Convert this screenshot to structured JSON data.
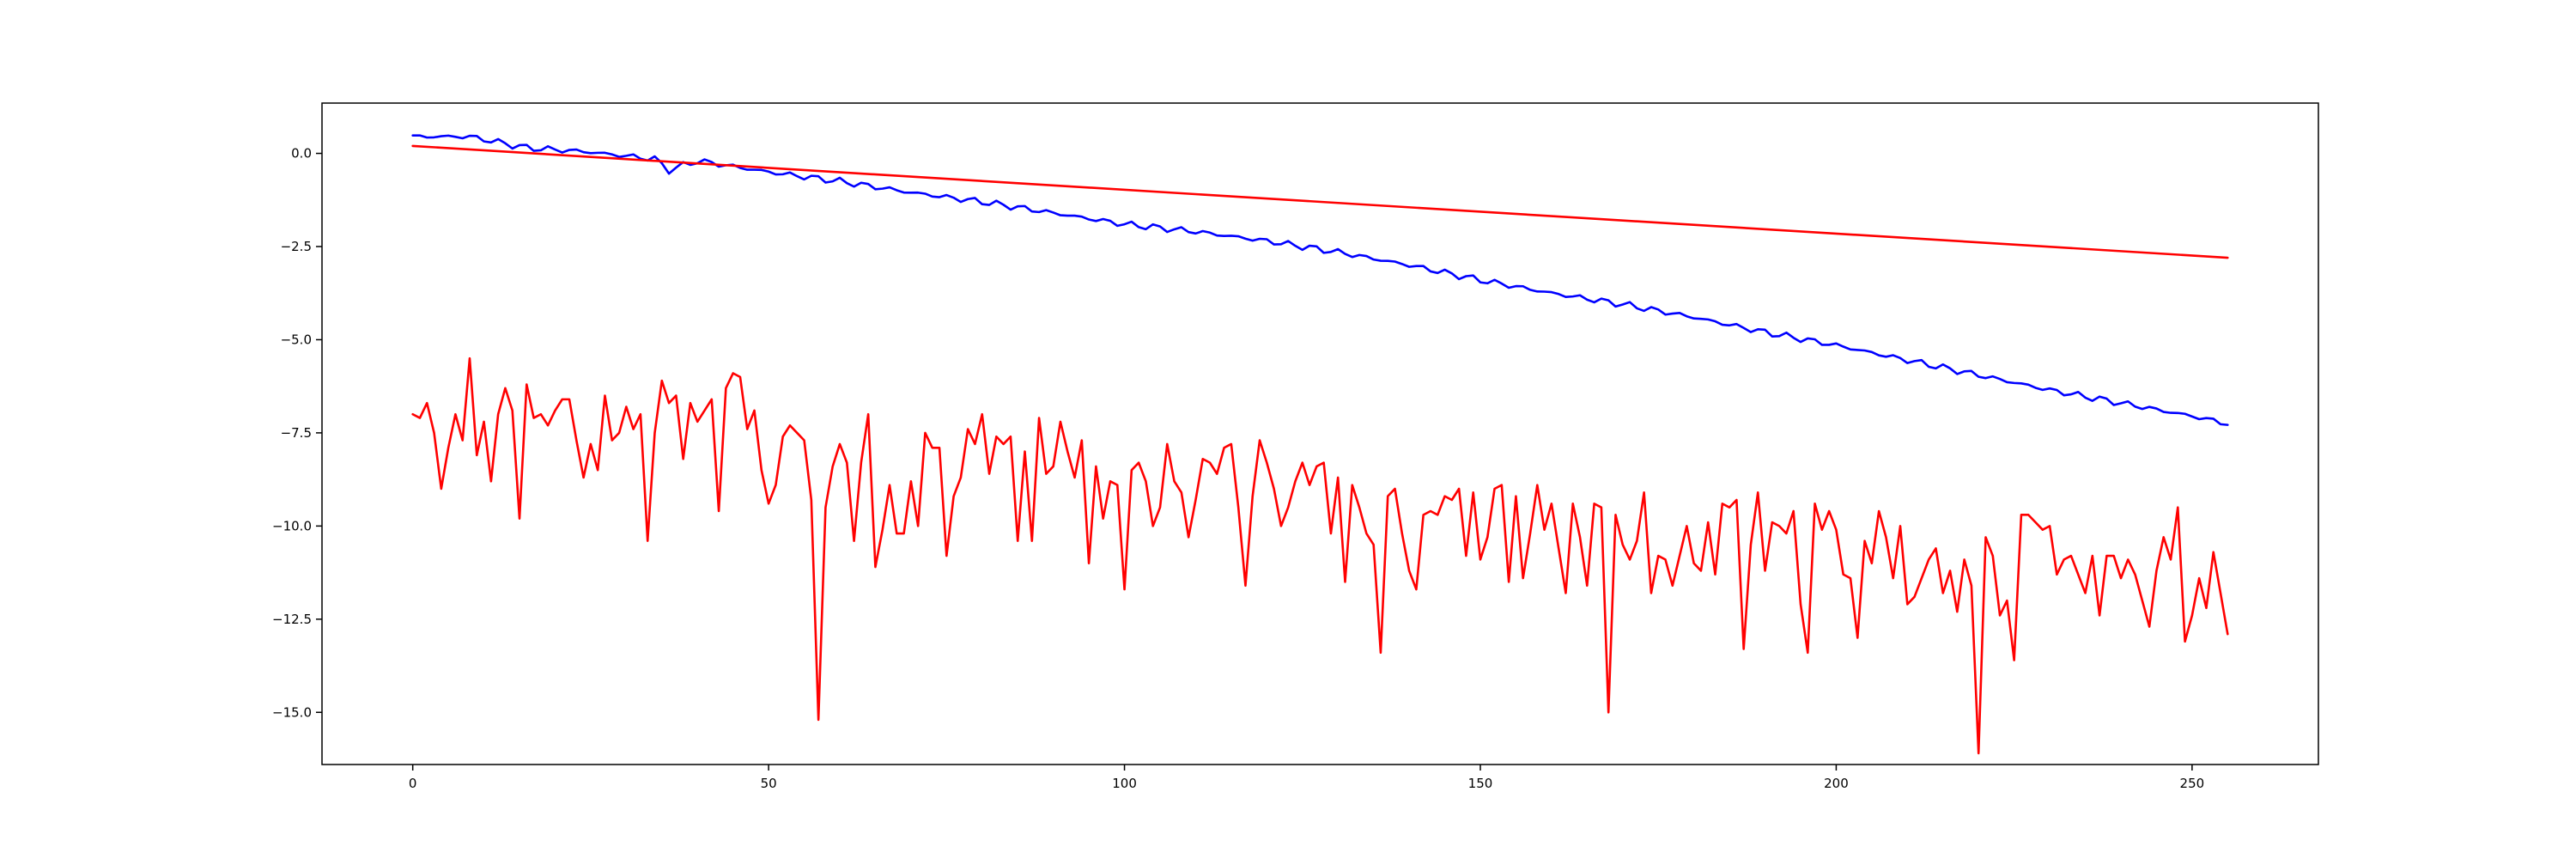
{
  "chart_data": {
    "type": "line",
    "title": "",
    "xlabel": "",
    "ylabel": "",
    "xlim": [
      -12.75,
      267.75
    ],
    "ylim": [
      -16.4,
      1.35
    ],
    "grid": false,
    "legend": "none",
    "x_ticks": [
      0,
      50,
      100,
      150,
      200,
      250
    ],
    "x_tick_labels": [
      "0",
      "50",
      "100",
      "150",
      "200",
      "250"
    ],
    "y_ticks": [
      0.0,
      -2.5,
      -5.0,
      -7.5,
      -10.0,
      -12.5,
      -15.0
    ],
    "y_tick_labels": [
      "0.0",
      "−2.5",
      "−5.0",
      "−7.5",
      "−10.0",
      "−12.5",
      "−15.0"
    ],
    "series": [
      {
        "color": "#0000ff",
        "x_start": 0,
        "anchors": [
          [
            0,
            0.45
          ],
          [
            8,
            0.45
          ],
          [
            16,
            0.15
          ],
          [
            24,
            0.05
          ],
          [
            34,
            -0.15
          ],
          [
            36,
            -0.45
          ],
          [
            40,
            -0.2
          ],
          [
            50,
            -0.5
          ],
          [
            60,
            -0.75
          ],
          [
            70,
            -1.05
          ],
          [
            80,
            -1.3
          ],
          [
            90,
            -1.6
          ],
          [
            100,
            -1.9
          ],
          [
            110,
            -2.1
          ],
          [
            120,
            -2.35
          ],
          [
            130,
            -2.65
          ],
          [
            140,
            -3.0
          ],
          [
            150,
            -3.4
          ],
          [
            160,
            -3.75
          ],
          [
            170,
            -4.05
          ],
          [
            180,
            -4.4
          ],
          [
            190,
            -4.8
          ],
          [
            200,
            -5.15
          ],
          [
            210,
            -5.55
          ],
          [
            220,
            -5.95
          ],
          [
            230,
            -6.35
          ],
          [
            240,
            -6.7
          ],
          [
            250,
            -7.05
          ],
          [
            255,
            -7.25
          ]
        ],
        "noise_amplitude": 0.06
      },
      {
        "color": "#ff0000",
        "x": [
          0,
          255
        ],
        "y": [
          0.2,
          -2.8
        ]
      },
      {
        "color": "#ff0000",
        "x_start": 0,
        "y": [
          -7.0,
          -7.1,
          -6.7,
          -7.5,
          -9.0,
          -7.9,
          -7.0,
          -7.7,
          -5.5,
          -8.1,
          -7.2,
          -8.8,
          -7.0,
          -6.3,
          -6.9,
          -9.8,
          -6.2,
          -7.1,
          -7.0,
          -7.3,
          -6.9,
          -6.6,
          -6.6,
          -7.7,
          -8.7,
          -7.8,
          -8.5,
          -6.5,
          -7.7,
          -7.5,
          -6.8,
          -7.4,
          -7.0,
          -10.4,
          -7.5,
          -6.1,
          -6.7,
          -6.5,
          -8.2,
          -6.7,
          -7.2,
          -6.9,
          -6.6,
          -9.6,
          -6.3,
          -5.9,
          -6.0,
          -7.4,
          -6.9,
          -8.5,
          -9.4,
          -8.9,
          -7.6,
          -7.3,
          -7.5,
          -7.7,
          -9.3,
          -15.2,
          -9.5,
          -8.4,
          -7.8,
          -8.3,
          -10.4,
          -8.3,
          -7.0,
          -11.1,
          -10.1,
          -8.9,
          -10.2,
          -10.2,
          -8.8,
          -10.0,
          -7.5,
          -7.9,
          -7.9,
          -10.8,
          -9.2,
          -8.7,
          -7.4,
          -7.8,
          -7.0,
          -8.6,
          -7.6,
          -7.8,
          -7.6,
          -10.4,
          -8.0,
          -10.4,
          -7.1,
          -8.6,
          -8.4,
          -7.2,
          -8.0,
          -8.7,
          -7.7,
          -11.0,
          -8.4,
          -9.8,
          -8.8,
          -8.9,
          -11.7,
          -8.5,
          -8.3,
          -8.8,
          -10.0,
          -9.5,
          -7.8,
          -8.8,
          -9.1,
          -10.3,
          -9.3,
          -8.2,
          -8.3,
          -8.6,
          -7.9,
          -7.8,
          -9.5,
          -11.6,
          -9.2,
          -7.7,
          -8.3,
          -9.0,
          -10.0,
          -9.5,
          -8.8,
          -8.3,
          -8.9,
          -8.4,
          -8.3,
          -10.2,
          -8.7,
          -11.5,
          -8.9,
          -9.5,
          -10.2,
          -10.5,
          -13.4,
          -9.2,
          -9.0,
          -10.2,
          -11.2,
          -11.7,
          -9.7,
          -9.6,
          -9.7,
          -9.2,
          -9.3,
          -9.0,
          -10.8,
          -9.1,
          -10.9,
          -10.3,
          -9.0,
          -8.9,
          -11.5,
          -9.2,
          -11.4,
          -10.2,
          -8.9,
          -10.1,
          -9.4,
          -10.6,
          -11.8,
          -9.4,
          -10.3,
          -11.6,
          -9.4,
          -9.5,
          -15.0,
          -9.7,
          -10.5,
          -10.9,
          -10.4,
          -9.1,
          -11.8,
          -10.8,
          -10.9,
          -11.6,
          -10.8,
          -10.0,
          -11.0,
          -11.2,
          -9.9,
          -11.3,
          -9.4,
          -9.5,
          -9.3,
          -13.3,
          -10.5,
          -9.1,
          -11.2,
          -9.9,
          -10.0,
          -10.2,
          -9.6,
          -12.1,
          -13.4,
          -9.4,
          -10.1,
          -9.6,
          -10.1,
          -11.3,
          -11.4,
          -13.0,
          -10.4,
          -11.0,
          -9.6,
          -10.3,
          -11.4,
          -10.0,
          -12.1,
          -11.9,
          -11.4,
          -10.9,
          -10.6,
          -11.8,
          -11.2,
          -12.3,
          -10.9,
          -11.6,
          -16.1,
          -10.3,
          -10.8,
          -12.4,
          -12.0,
          -13.6,
          -9.7,
          -9.7,
          -9.9,
          -10.1,
          -10.0,
          -11.3,
          -10.9,
          -10.8,
          -11.3,
          -11.8,
          -10.8,
          -12.4,
          -10.8,
          -10.8,
          -11.4,
          -10.9,
          -11.3,
          -12.0,
          -12.7,
          -11.2,
          -10.3,
          -10.9,
          -9.5,
          -13.1,
          -12.4,
          -11.4,
          -12.2,
          -10.7,
          -11.8,
          -12.9
        ]
      }
    ]
  }
}
